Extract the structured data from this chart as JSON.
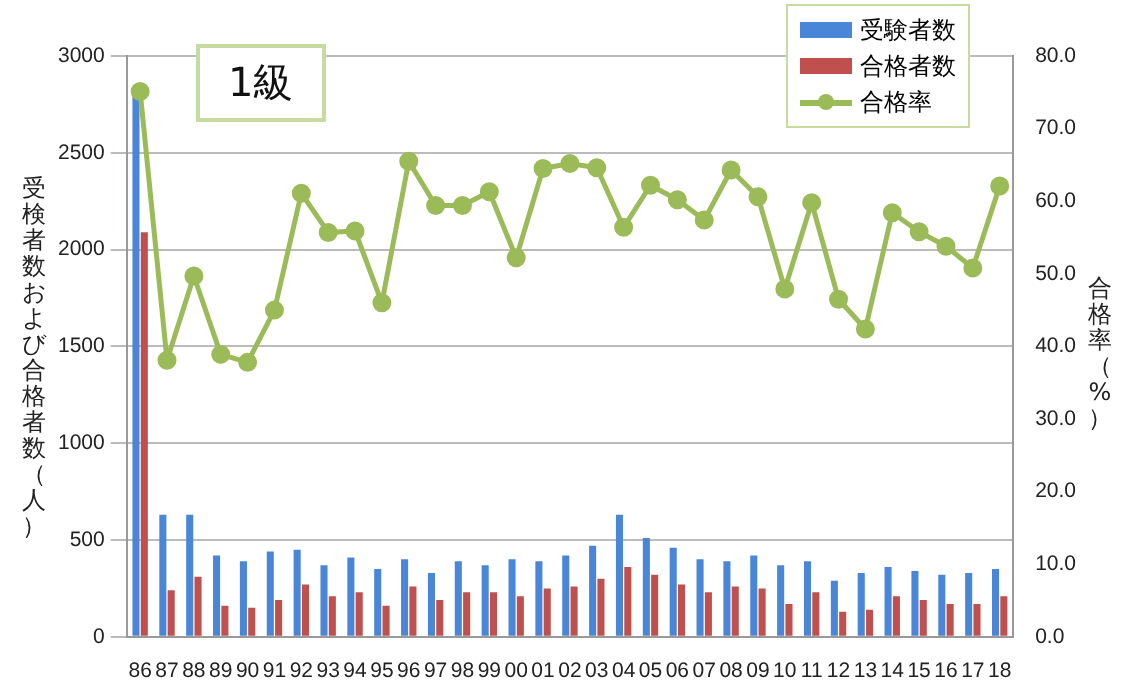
{
  "chart_data": {
    "type": "bar",
    "title": "1級",
    "ylabel": "受検者数および合格者数（人）",
    "y2label": "合格率（%）",
    "categories": [
      "86",
      "87",
      "88",
      "89",
      "90",
      "91",
      "92",
      "93",
      "94",
      "95",
      "96",
      "97",
      "98",
      "99",
      "00",
      "01",
      "02",
      "03",
      "04",
      "05",
      "06",
      "07",
      "08",
      "09",
      "10",
      "11",
      "12",
      "13",
      "14",
      "15",
      "16",
      "17",
      "18"
    ],
    "series": [
      {
        "name": "受験者数",
        "color": "#4a86d8",
        "values": [
          2800,
          630,
          630,
          420,
          390,
          440,
          450,
          370,
          410,
          350,
          400,
          330,
          390,
          370,
          400,
          390,
          420,
          470,
          630,
          510,
          460,
          400,
          390,
          420,
          370,
          390,
          290,
          330,
          360,
          340,
          320,
          330,
          350
        ]
      },
      {
        "name": "合格者数",
        "color": "#c0504d",
        "values": [
          2090,
          240,
          310,
          160,
          150,
          190,
          270,
          210,
          230,
          160,
          260,
          190,
          230,
          230,
          210,
          250,
          260,
          300,
          360,
          320,
          270,
          230,
          260,
          250,
          170,
          230,
          130,
          140,
          210,
          190,
          170,
          170,
          210
        ]
      },
      {
        "name": "合格率",
        "type": "line",
        "axis": "y2",
        "color": "#9bbb59",
        "values": [
          75.1,
          38.1,
          49.7,
          38.9,
          37.8,
          45.0,
          61.1,
          55.7,
          55.9,
          46.0,
          65.5,
          59.4,
          59.4,
          61.3,
          52.2,
          64.5,
          65.2,
          64.6,
          56.4,
          62.2,
          60.2,
          57.4,
          64.3,
          60.6,
          47.9,
          59.8,
          46.5,
          42.4,
          58.4,
          55.8,
          53.8,
          50.8,
          62.1
        ]
      }
    ],
    "ylim": [
      0,
      3000
    ],
    "yticks": [
      0,
      500,
      1000,
      1500,
      2000,
      2500,
      3000
    ],
    "y2lim": [
      0,
      80
    ],
    "y2ticks": [
      {
        "value": 0,
        "label": "0.0"
      },
      {
        "value": 10,
        "label": "10.0"
      },
      {
        "value": 20,
        "label": "20.0"
      },
      {
        "value": 30,
        "label": "30.0"
      },
      {
        "value": 40,
        "label": "40.0"
      },
      {
        "value": 50,
        "label": "50.0"
      },
      {
        "value": 60,
        "label": "60.0"
      },
      {
        "value": 70,
        "label": "70.0"
      },
      {
        "value": 80,
        "label": "80.0"
      }
    ],
    "grid": "y",
    "legend": "top right",
    "marker": "circle",
    "line_style": "solid"
  }
}
